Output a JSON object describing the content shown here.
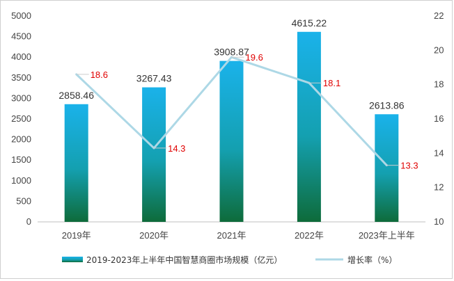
{
  "chart_data": {
    "type": "bar",
    "categories": [
      "2019年",
      "2020年",
      "2021年",
      "2022年",
      "2023年上半年"
    ],
    "series": [
      {
        "name": "2019-2023年上半年中国智慧商圈市场规模（亿元）",
        "kind": "bar",
        "axis": "left",
        "values": [
          2858.46,
          3267.43,
          3908.87,
          4615.22,
          2613.86
        ],
        "value_labels": [
          "2858.46",
          "3267.43",
          "3908.87",
          "4615.22",
          "2613.86"
        ]
      },
      {
        "name": "增长率（%）",
        "kind": "line",
        "axis": "right",
        "values": [
          18.6,
          14.3,
          19.6,
          18.1,
          13.3
        ],
        "value_labels": [
          "18.6",
          "14.3",
          "19.6",
          "18.1",
          "13.3"
        ]
      }
    ],
    "y_left": {
      "min": 0,
      "max": 5000,
      "step": 500,
      "ticks": [
        "0",
        "500",
        "1000",
        "1500",
        "2000",
        "2500",
        "3000",
        "3500",
        "4000",
        "4500",
        "5000"
      ]
    },
    "y_right": {
      "min": 10,
      "max": 22,
      "step": 2,
      "ticks": [
        "10",
        "12",
        "14",
        "16",
        "18",
        "20",
        "22"
      ]
    },
    "grid": false,
    "legend": "bottom-center",
    "colors": {
      "bar_top": "#1ab2ea",
      "bar_mid": "#14a0b0",
      "bar_bottom": "#0e6b3a",
      "line": "#add8e6",
      "rate_label": "#e00000",
      "axis": "#bfbfbf"
    }
  }
}
